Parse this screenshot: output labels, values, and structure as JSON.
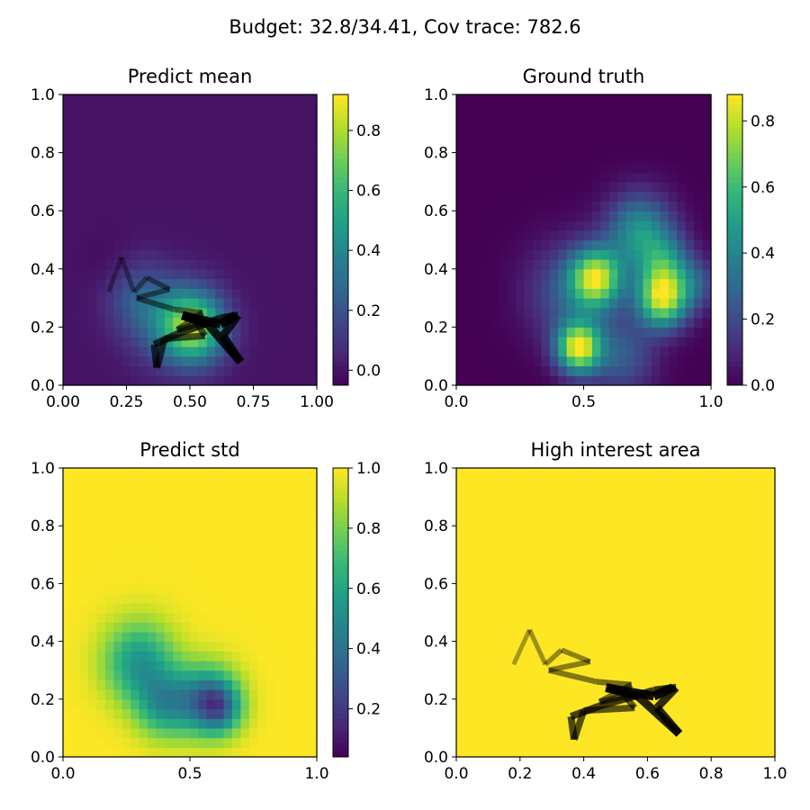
{
  "figure": {
    "suptitle": "Budget: 32.8/34.41,  Cov trace: 782.6"
  },
  "colors": {
    "viridis": [
      "#440154",
      "#482878",
      "#3e4989",
      "#31688e",
      "#26828e",
      "#1f9e89",
      "#35b779",
      "#6ece58",
      "#b5de2b",
      "#fde725"
    ],
    "path": "#000000"
  },
  "path_points": [
    [
      0.18,
      0.32
    ],
    [
      0.23,
      0.44
    ],
    [
      0.28,
      0.32
    ],
    [
      0.33,
      0.37
    ],
    [
      0.42,
      0.33
    ],
    [
      0.29,
      0.3
    ],
    [
      0.44,
      0.26
    ],
    [
      0.55,
      0.25
    ],
    [
      0.45,
      0.19
    ],
    [
      0.53,
      0.21
    ],
    [
      0.56,
      0.17
    ],
    [
      0.4,
      0.16
    ],
    [
      0.37,
      0.06
    ],
    [
      0.36,
      0.14
    ],
    [
      0.46,
      0.18
    ],
    [
      0.62,
      0.23
    ],
    [
      0.69,
      0.24
    ],
    [
      0.63,
      0.17
    ],
    [
      0.7,
      0.08
    ],
    [
      0.57,
      0.21
    ],
    [
      0.47,
      0.24
    ],
    [
      0.62,
      0.21
    ],
    [
      0.68,
      0.24
    ]
  ],
  "chart_data": [
    {
      "type": "heatmap",
      "title": "Predict mean",
      "xlabel": "",
      "ylabel": "",
      "xlim": [
        0,
        1
      ],
      "ylim": [
        0,
        1
      ],
      "xticks": [
        "0.00",
        "0.25",
        "0.50",
        "0.75",
        "1.00"
      ],
      "yticks": [
        "0.0",
        "0.2",
        "0.4",
        "0.6",
        "0.8",
        "1.0"
      ],
      "colorbar": {
        "range": [
          -0.05,
          0.92
        ],
        "ticks": [
          "0.0",
          "0.2",
          "0.4",
          "0.6",
          "0.8"
        ]
      },
      "field": {
        "base": 0.0,
        "bumps": [
          {
            "x": 0.52,
            "y": 0.2,
            "s": 0.085,
            "a": 0.72
          },
          {
            "x": 0.4,
            "y": 0.22,
            "s": 0.1,
            "a": 0.25
          },
          {
            "x": 0.28,
            "y": 0.32,
            "s": 0.09,
            "a": 0.18
          },
          {
            "x": 0.2,
            "y": 0.4,
            "s": 0.08,
            "a": -0.05
          }
        ]
      },
      "overlay_path": true
    },
    {
      "type": "heatmap",
      "title": "Ground truth",
      "xlabel": "",
      "ylabel": "",
      "xlim": [
        0,
        1
      ],
      "ylim": [
        0,
        1
      ],
      "xticks": [
        "0.0",
        "0.5",
        "1.0"
      ],
      "yticks": [
        "0.0",
        "0.2",
        "0.4",
        "0.6",
        "0.8",
        "1.0"
      ],
      "colorbar": {
        "range": [
          0,
          0.88
        ],
        "ticks": [
          "0.0",
          "0.2",
          "0.4",
          "0.6",
          "0.8"
        ]
      },
      "field": {
        "base": 0.0,
        "bumps": [
          {
            "x": 0.48,
            "y": 0.13,
            "s": 0.06,
            "a": 0.82
          },
          {
            "x": 0.55,
            "y": 0.37,
            "s": 0.07,
            "a": 0.72
          },
          {
            "x": 0.81,
            "y": 0.3,
            "s": 0.07,
            "a": 0.8
          },
          {
            "x": 0.82,
            "y": 0.42,
            "s": 0.07,
            "a": 0.35
          },
          {
            "x": 0.72,
            "y": 0.53,
            "s": 0.09,
            "a": 0.45
          },
          {
            "x": 0.45,
            "y": 0.32,
            "s": 0.12,
            "a": 0.25
          },
          {
            "x": 0.65,
            "y": 0.1,
            "s": 0.09,
            "a": 0.25
          },
          {
            "x": 0.95,
            "y": 0.35,
            "s": 0.06,
            "a": 0.2
          }
        ]
      },
      "overlay_path": false
    },
    {
      "type": "heatmap",
      "title": "Predict std",
      "xlabel": "",
      "ylabel": "",
      "xlim": [
        0,
        1
      ],
      "ylim": [
        0,
        1
      ],
      "xticks": [
        "0.0",
        "0.5",
        "1.0"
      ],
      "yticks": [
        "0.0",
        "0.2",
        "0.4",
        "0.6",
        "0.8",
        "1.0"
      ],
      "colorbar": {
        "range": [
          0.04,
          1.0
        ],
        "ticks": [
          "0.2",
          "0.4",
          "0.6",
          "0.8",
          "1.0"
        ]
      },
      "field": {
        "base": 1.0,
        "bumps": [
          {
            "x": 0.57,
            "y": 0.2,
            "s": 0.085,
            "a": -0.55
          },
          {
            "x": 0.3,
            "y": 0.33,
            "s": 0.1,
            "a": -0.45
          },
          {
            "x": 0.4,
            "y": 0.18,
            "s": 0.08,
            "a": -0.4
          },
          {
            "x": 0.62,
            "y": 0.17,
            "s": 0.06,
            "a": -0.35
          }
        ]
      },
      "overlay_path": false
    },
    {
      "type": "heatmap",
      "title": "High interest area",
      "xlabel": "",
      "ylabel": "",
      "xlim": [
        0,
        1
      ],
      "ylim": [
        0,
        1
      ],
      "xticks": [
        "0.0",
        "0.2",
        "0.4",
        "0.6",
        "0.8",
        "1.0"
      ],
      "yticks": [
        "0.0",
        "0.2",
        "0.4",
        "0.6",
        "0.8",
        "1.0"
      ],
      "colorbar": null,
      "field": {
        "base": 1.0,
        "bumps": []
      },
      "overlay_path": true
    }
  ]
}
